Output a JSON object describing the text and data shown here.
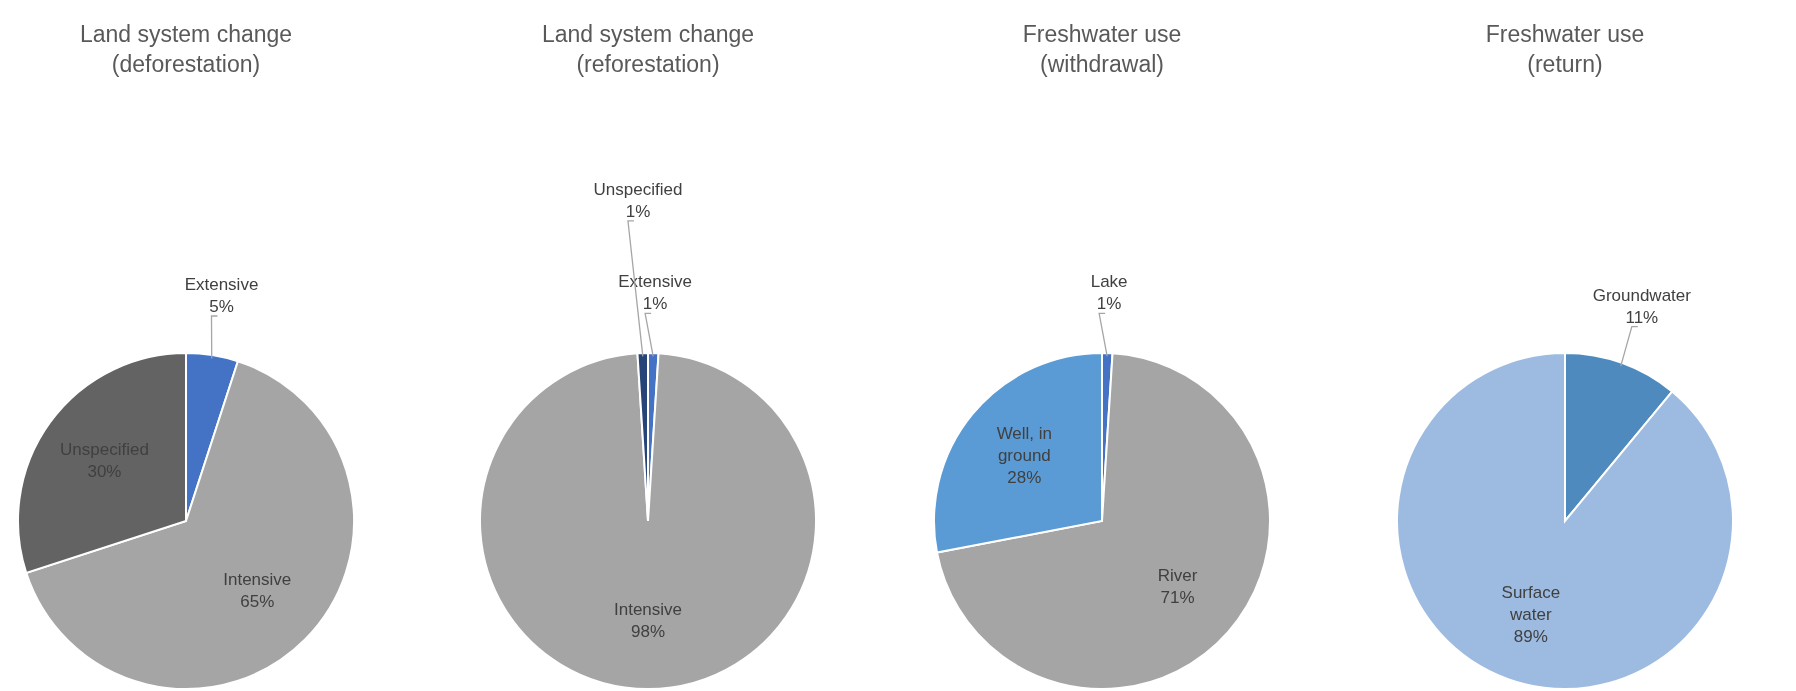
{
  "chart_data": [
    {
      "type": "pie",
      "title": "Land system change\n(deforestation)",
      "categories": [
        "Extensive",
        "Intensive",
        "Unspecified"
      ],
      "values": [
        5,
        65,
        30
      ],
      "colors": [
        "#4472c4",
        "#a5a5a5",
        "#636363"
      ],
      "value_labels": [
        "5%",
        "65%",
        "30%"
      ]
    },
    {
      "type": "pie",
      "title": "Land system change\n(reforestation)",
      "categories": [
        "Extensive",
        "Intensive",
        "Unspecified"
      ],
      "values": [
        1,
        98,
        1
      ],
      "colors": [
        "#4472c4",
        "#a5a5a5",
        "#264478"
      ],
      "value_labels": [
        "1%",
        "98%",
        "1%"
      ]
    },
    {
      "type": "pie",
      "title": "Freshwater use\n(withdrawal)",
      "categories": [
        "Lake",
        "River",
        "Well, in ground"
      ],
      "values": [
        1,
        71,
        28
      ],
      "colors": [
        "#4472c4",
        "#a5a5a5",
        "#5b9bd5"
      ],
      "value_labels": [
        "1%",
        "71%",
        "28%"
      ]
    },
    {
      "type": "pie",
      "title": "Freshwater use\n(return)",
      "categories": [
        "Groundwater",
        "Surface water"
      ],
      "values": [
        11,
        89
      ],
      "colors": [
        "#4e8abe",
        "#9dbbe0"
      ],
      "value_labels": [
        "11%",
        "89%"
      ]
    }
  ]
}
